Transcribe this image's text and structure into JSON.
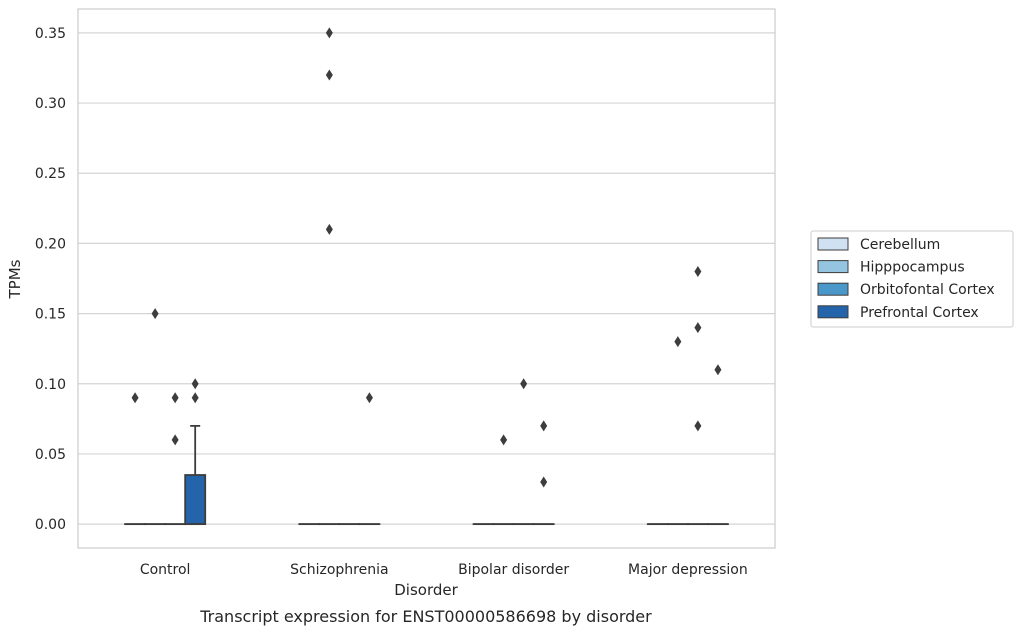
{
  "chart_data": {
    "type": "box",
    "xlabel": "Disorder",
    "ylabel": "TPMs",
    "caption": "Transcript expression for ENST00000586698 by disorder",
    "categories": [
      "Control",
      "Schizophrenia",
      "Bipolar disorder",
      "Major depression"
    ],
    "yticks": [
      "0.00",
      "0.05",
      "0.10",
      "0.15",
      "0.20",
      "0.25",
      "0.30",
      "0.35"
    ],
    "ylim": [
      -0.017,
      0.367
    ],
    "grid": true,
    "legend_position": "right",
    "series": [
      {
        "name": "Cerebellum",
        "color": "#d0e1f2",
        "boxes": [
          {
            "q1": 0,
            "median": 0,
            "q3": 0,
            "whisker_low": 0,
            "whisker_high": 0,
            "outliers": [
              0.09
            ]
          },
          {
            "q1": 0,
            "median": 0,
            "q3": 0,
            "whisker_low": 0,
            "whisker_high": 0,
            "outliers": []
          },
          {
            "q1": 0,
            "median": 0,
            "q3": 0,
            "whisker_low": 0,
            "whisker_high": 0,
            "outliers": []
          },
          {
            "q1": 0,
            "median": 0,
            "q3": 0,
            "whisker_low": 0,
            "whisker_high": 0,
            "outliers": []
          }
        ]
      },
      {
        "name": "Hipppocampus",
        "color": "#94c4df",
        "boxes": [
          {
            "q1": 0,
            "median": 0,
            "q3": 0,
            "whisker_low": 0,
            "whisker_high": 0,
            "outliers": [
              0.15
            ]
          },
          {
            "q1": 0,
            "median": 0,
            "q3": 0,
            "whisker_low": 0,
            "whisker_high": 0,
            "outliers": [
              0.35,
              0.32,
              0.21
            ]
          },
          {
            "q1": 0,
            "median": 0,
            "q3": 0,
            "whisker_low": 0,
            "whisker_high": 0,
            "outliers": [
              0.06
            ]
          },
          {
            "q1": 0,
            "median": 0,
            "q3": 0,
            "whisker_low": 0,
            "whisker_high": 0,
            "outliers": [
              0.13
            ]
          }
        ]
      },
      {
        "name": "Orbitofontal Cortex",
        "color": "#4a98c9",
        "boxes": [
          {
            "q1": 0,
            "median": 0,
            "q3": 0,
            "whisker_low": 0,
            "whisker_high": 0,
            "outliers": [
              0.09,
              0.06
            ]
          },
          {
            "q1": 0,
            "median": 0,
            "q3": 0,
            "whisker_low": 0,
            "whisker_high": 0,
            "outliers": []
          },
          {
            "q1": 0,
            "median": 0,
            "q3": 0,
            "whisker_low": 0,
            "whisker_high": 0,
            "outliers": [
              0.1
            ]
          },
          {
            "q1": 0,
            "median": 0,
            "q3": 0,
            "whisker_low": 0,
            "whisker_high": 0,
            "outliers": [
              0.18,
              0.14,
              0.07
            ]
          }
        ]
      },
      {
        "name": "Prefrontal Cortex",
        "color": "#2464ab",
        "boxes": [
          {
            "q1": 0,
            "median": 0,
            "q3": 0.035,
            "whisker_low": 0,
            "whisker_high": 0.07,
            "outliers": [
              0.1,
              0.09
            ]
          },
          {
            "q1": 0,
            "median": 0,
            "q3": 0,
            "whisker_low": 0,
            "whisker_high": 0,
            "outliers": [
              0.09
            ]
          },
          {
            "q1": 0,
            "median": 0,
            "q3": 0,
            "whisker_low": 0,
            "whisker_high": 0,
            "outliers": [
              0.07,
              0.03
            ]
          },
          {
            "q1": 0,
            "median": 0,
            "q3": 0,
            "whisker_low": 0,
            "whisker_high": 0,
            "outliers": [
              0.11
            ]
          }
        ]
      }
    ]
  }
}
